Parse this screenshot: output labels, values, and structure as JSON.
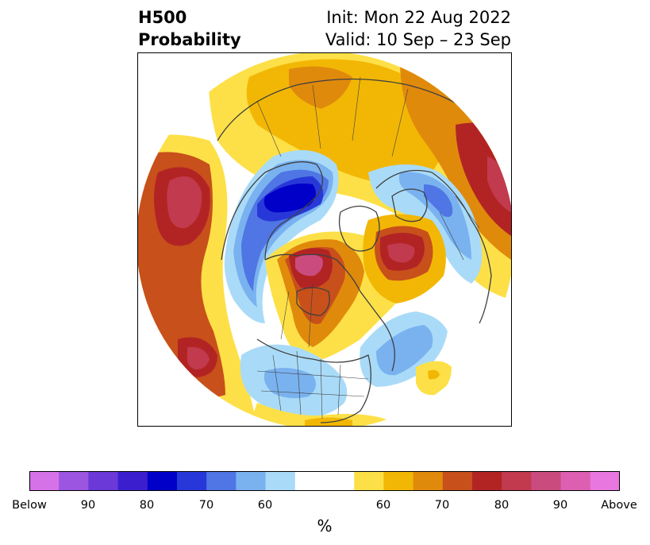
{
  "title": {
    "left_line1": "H500",
    "left_line2": "Probability",
    "right_line1": "Init: Mon 22 Aug 2022",
    "right_line2": "Valid: 10 Sep – 23 Sep"
  },
  "colorbar": {
    "colors": [
      "#d672e8",
      "#9b55e0",
      "#6a39d8",
      "#3b1fcf",
      "#0000c8",
      "#2838d8",
      "#4f76e4",
      "#7ab2f0",
      "#a9dbf8",
      "#ffffff",
      "#ffffff",
      "#fde047",
      "#f2b705",
      "#e08a0c",
      "#c8501b",
      "#b22424",
      "#c23a4e",
      "#ca4c7f",
      "#dc5fb2",
      "#e878e0"
    ],
    "ticks": [
      "Below",
      "90",
      "80",
      "70",
      "60",
      "60",
      "70",
      "80",
      "90",
      "Above"
    ],
    "units": "%"
  },
  "map": {
    "colors": {
      "above_55": "#fde047",
      "above_60": "#f2b705",
      "above_65": "#e08a0c",
      "above_70": "#c8501b",
      "above_75": "#b22424",
      "above_80": "#c23a4e",
      "above_85": "#ca4c7f",
      "below_55": "#a9dbf8",
      "below_60": "#7ab2f0",
      "below_65": "#4f76e4",
      "below_70": "#2838d8",
      "below_75": "#0000c8",
      "border": "#404040"
    }
  }
}
